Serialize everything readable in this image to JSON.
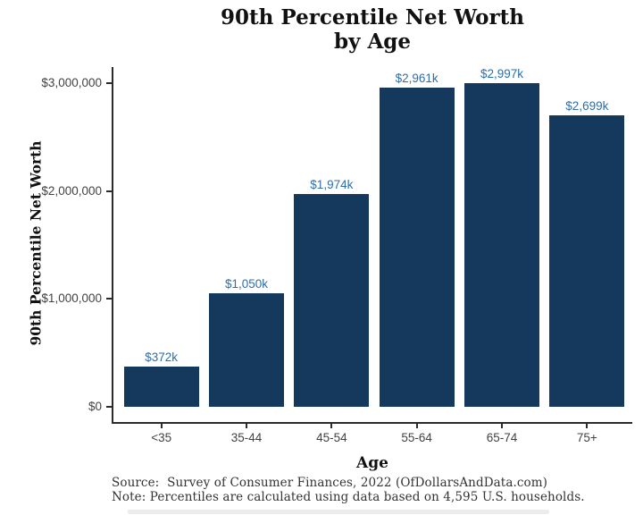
{
  "title": {
    "line1": "90th Percentile Net Worth",
    "line2": "by Age"
  },
  "y_axis": {
    "title": "90th Percentile Net Worth"
  },
  "x_axis": {
    "title": "Age"
  },
  "caption": {
    "source": "Source:  Survey of Consumer Finances, 2022 (OfDollarsAndData.com)",
    "note": "Note: Percentiles are calculated using data based on 4,595 U.S. households."
  },
  "colors": {
    "bar": "#14395c",
    "bar_label": "#2d6eaa",
    "axis_line": "#2b2b2b",
    "tick_label": "#424242",
    "title_text": "#111111",
    "caption_text": "#333333"
  },
  "chart_data": {
    "type": "bar",
    "title": "90th Percentile Net Worth by Age",
    "xlabel": "Age",
    "ylabel": "90th Percentile Net Worth",
    "categories": [
      "<35",
      "35-44",
      "45-54",
      "55-64",
      "65-74",
      "75+"
    ],
    "values_usd_thousands": [
      372,
      1050,
      1974,
      2961,
      2997,
      2699
    ],
    "value_labels": [
      "$372k",
      "$1,050k",
      "$1,974k",
      "$2,961k",
      "$2,997k",
      "$2,699k"
    ],
    "ylim": [
      0,
      3000000
    ],
    "y_ticks": [
      0,
      1000000,
      2000000,
      3000000
    ],
    "y_tick_labels": [
      "$0",
      "$1,000,000",
      "$2,000,000",
      "$3,000,000"
    ],
    "grid": false,
    "legend": false
  }
}
